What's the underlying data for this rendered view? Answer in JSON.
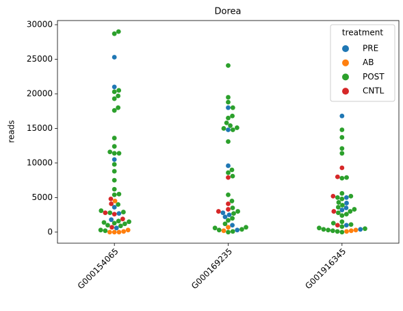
{
  "chart_data": {
    "type": "swarm",
    "title": "Dorea",
    "y_label": "reads",
    "categories": [
      "G000154065",
      "G000169235",
      "G001916345"
    ],
    "legend_title": "treatment",
    "legend_position": "upper right",
    "series": [
      {
        "name": "PRE",
        "color": "#1f77b4",
        "values": [
          [
            25300,
            21000,
            10500,
            3600,
            2700,
            1800,
            600
          ],
          [
            18000,
            14800,
            9600,
            2800,
            2500,
            2200,
            1000,
            300
          ],
          [
            16800,
            5000,
            4200,
            3500,
            3200,
            1000,
            400
          ]
        ]
      },
      {
        "name": "AB",
        "color": "#ff7f0e",
        "values": [
          [
            4500,
            300,
            100,
            0,
            0,
            0
          ],
          [
            700,
            200
          ],
          [
            300,
            200,
            100
          ]
        ]
      },
      {
        "name": "POST",
        "color": "#2ca02c",
        "values": [
          [
            29000,
            28700,
            20500,
            20300,
            19700,
            19300,
            18000,
            17600,
            13600,
            12400,
            11600,
            11400,
            11400,
            9800,
            8800,
            7500,
            6200,
            5500,
            5400,
            4000,
            3100,
            2900,
            2800,
            1600,
            1500,
            1400,
            1300,
            1200,
            1000,
            900,
            300,
            200
          ],
          [
            24100,
            19500,
            18800,
            18000,
            16800,
            16500,
            15800,
            15400,
            15100,
            15000,
            14800,
            13100,
            9000,
            8600,
            8100,
            5400,
            4500,
            3500,
            3000,
            2700,
            2000,
            1700,
            1200,
            700,
            600,
            400,
            300,
            100,
            0
          ],
          [
            14800,
            13700,
            12100,
            11400,
            7900,
            7800,
            5600,
            5200,
            5000,
            4800,
            4300,
            3900,
            3600,
            3300,
            3000,
            2800,
            2600,
            2400,
            1500,
            1300,
            1100,
            800,
            600,
            500,
            400,
            300,
            200,
            100,
            0
          ]
        ]
      },
      {
        "name": "CNTL",
        "color": "#d62728",
        "values": [
          [
            4800,
            4100,
            2800,
            2600,
            1900,
            700
          ],
          [
            7900,
            4100,
            3300,
            3000
          ],
          [
            9300,
            8000,
            5200,
            3000,
            1000
          ]
        ]
      }
    ],
    "ylim": [
      -1600,
      30600
    ],
    "yticks": [
      0,
      5000,
      10000,
      15000,
      20000,
      25000,
      30000
    ]
  }
}
